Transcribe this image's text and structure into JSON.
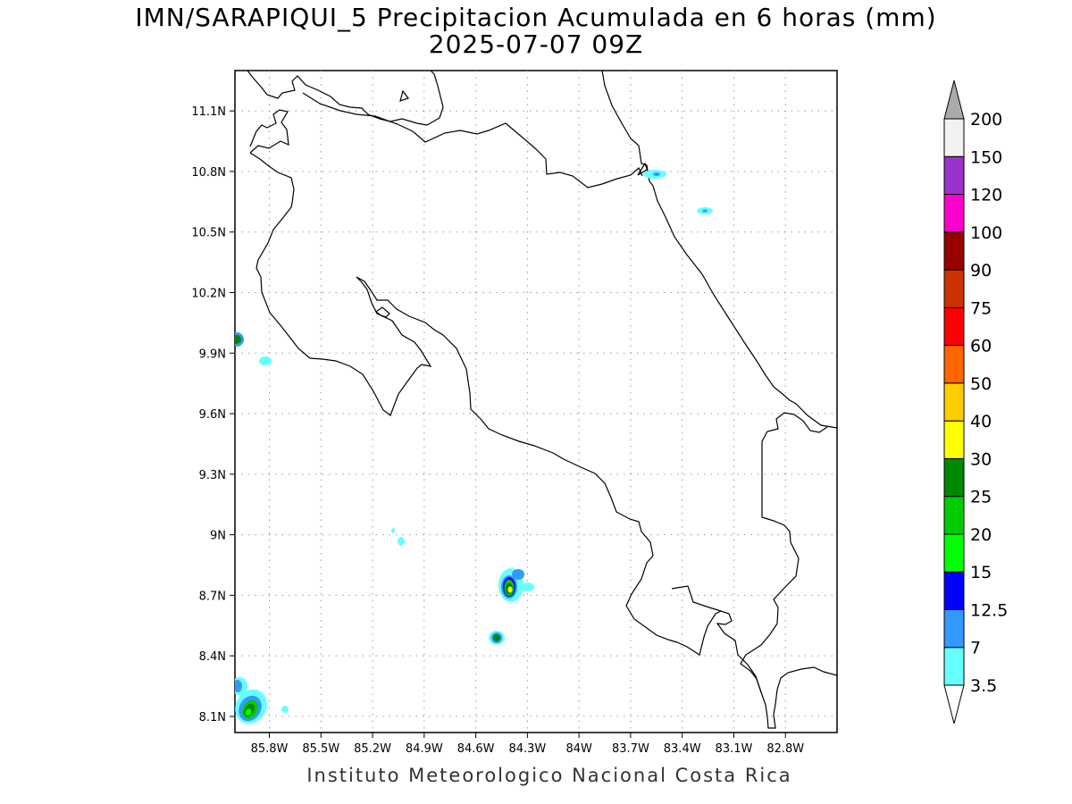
{
  "title": {
    "line1": "IMN/SARAPIQUI_5 Precipitacion Acumulada en 6 horas (mm)",
    "line2": "2025-07-07 09Z"
  },
  "axes": {
    "lat_ticks": [
      "11.1N",
      "10.8N",
      "10.5N",
      "10.2N",
      "9.9N",
      "9.6N",
      "9.3N",
      "9N",
      "8.7N",
      "8.4N",
      "8.1N"
    ],
    "lat_values": [
      11.1,
      10.8,
      10.5,
      10.2,
      9.9,
      9.6,
      9.3,
      9.0,
      8.7,
      8.4,
      8.1
    ],
    "lon_ticks": [
      "85.8W",
      "85.5W",
      "85.2W",
      "84.9W",
      "84.6W",
      "84.3W",
      "84W",
      "83.7W",
      "83.4W",
      "83.1W",
      "82.8W"
    ],
    "lon_values": [
      -85.8,
      -85.5,
      -85.2,
      -84.9,
      -84.6,
      -84.3,
      -84.0,
      -83.7,
      -83.4,
      -83.1,
      -82.8
    ],
    "lon_range": [
      -86.0,
      -82.5
    ],
    "lat_range": [
      8.02,
      11.3
    ],
    "grid": "dotted"
  },
  "colorbar": {
    "levels": [
      "3.5",
      "7",
      "12.5",
      "15",
      "20",
      "25",
      "30",
      "40",
      "50",
      "60",
      "75",
      "90",
      "100",
      "120",
      "150",
      "200"
    ],
    "colors": [
      "#66ffff",
      "#3399ff",
      "#0000ff",
      "#00ff00",
      "#00cc00",
      "#008800",
      "#ffff00",
      "#ffcc00",
      "#ff6600",
      "#ff0000",
      "#cc3300",
      "#990000",
      "#ff00cc",
      "#9933cc",
      "#f2f2f2"
    ],
    "over_color": "#aaaaaa",
    "under_color": "#ffffff"
  },
  "credit": "Instituto Meteorologico Nacional Costa Rica"
}
